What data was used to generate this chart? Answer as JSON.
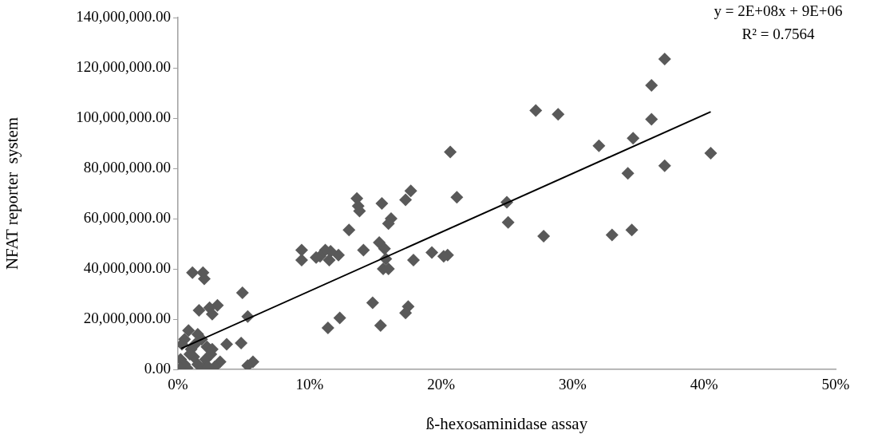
{
  "chart_data": {
    "type": "scatter",
    "xlabel": "ß-hexosaminidase assay",
    "ylabel": "NFAT reporter  system",
    "annotations": [
      "y = 2E+08x + 9E+06",
      "R² = 0.7564"
    ],
    "xlim": [
      0,
      0.5
    ],
    "xticks": [
      {
        "value": 0,
        "label": "0%"
      },
      {
        "value": 0.1,
        "label": "10%"
      },
      {
        "value": 0.2,
        "label": "20%"
      },
      {
        "value": 0.3,
        "label": "30%"
      },
      {
        "value": 0.4,
        "label": "40%"
      },
      {
        "value": 0.5,
        "label": "50%"
      }
    ],
    "ylim": [
      0,
      140000000
    ],
    "yticks": [
      {
        "value": 0,
        "label": "0.00"
      },
      {
        "value": 20000000,
        "label": "20,000,000.00"
      },
      {
        "value": 40000000,
        "label": "40,000,000.00"
      },
      {
        "value": 60000000,
        "label": "60,000,000.00"
      },
      {
        "value": 80000000,
        "label": "80,000,000.00"
      },
      {
        "value": 100000000,
        "label": "100,000,000.00"
      },
      {
        "value": 120000000,
        "label": "120,000,000.00"
      },
      {
        "value": 140000000,
        "label": "140,000,000.00"
      }
    ],
    "grid": false,
    "legend": false,
    "marker": "diamond",
    "series": [
      {
        "color": "#595959",
        "x": [
          0.37,
          0.36,
          0.36,
          0.346,
          0.32,
          0.405,
          0.37,
          0.342,
          0.345,
          0.33,
          0.278,
          0.272,
          0.289,
          0.25,
          0.251,
          0.207,
          0.212,
          0.205,
          0.202,
          0.193,
          0.177,
          0.173,
          0.179,
          0.175,
          0.173,
          0.162,
          0.16,
          0.155,
          0.153,
          0.157,
          0.158,
          0.156,
          0.16,
          0.148,
          0.154,
          0.141,
          0.136,
          0.137,
          0.138,
          0.13,
          0.123,
          0.114,
          0.122,
          0.116,
          0.112,
          0.108,
          0.115,
          0.105,
          0.094,
          0.094,
          0.011,
          0.019,
          0.02,
          0.049,
          0.03,
          0.024,
          0.016,
          0.026,
          0.053,
          0.048,
          0.037,
          0.057,
          0.053,
          0.032,
          0.028,
          0.008,
          0.005,
          0.003,
          0.015,
          0.018,
          0.022,
          0.01,
          0.002,
          0.005,
          0.002,
          0.012,
          0.015,
          0.021,
          0.025,
          0.019,
          0.007,
          0.023,
          0.013,
          0.009,
          0.026
        ],
        "values": [
          123500000,
          113000000,
          99500000,
          92000000,
          89000000,
          86000000,
          81000000,
          78000000,
          55500000,
          53500000,
          53000000,
          103000000,
          101500000,
          66500000,
          58500000,
          86500000,
          68500000,
          45500000,
          45000000,
          46500000,
          71000000,
          67500000,
          43500000,
          25000000,
          22500000,
          60000000,
          58000000,
          66000000,
          50500000,
          48000000,
          44000000,
          40000000,
          40000000,
          26500000,
          17500000,
          47500000,
          68000000,
          65000000,
          63000000,
          55500000,
          20500000,
          16500000,
          45500000,
          47000000,
          47500000,
          45000000,
          43500000,
          44500000,
          47500000,
          43500000,
          38500000,
          38500000,
          36000000,
          30500000,
          25500000,
          24500000,
          23500000,
          22000000,
          21000000,
          10500000,
          10000000,
          3000000,
          1500000,
          3000000,
          1000000,
          15500000,
          12000000,
          10000000,
          14000000,
          12000000,
          9000000,
          8000000,
          4000000,
          2000000,
          500000,
          5000000,
          2000000,
          4000000,
          6000000,
          500000,
          500000,
          1000000,
          10000000,
          6000000,
          8000000
        ]
      },
      {
        "type": "line",
        "color": "#000000",
        "marker": "none",
        "x": [
          0.0024,
          0.405
        ],
        "values": [
          8300000,
          102500000
        ]
      }
    ]
  }
}
